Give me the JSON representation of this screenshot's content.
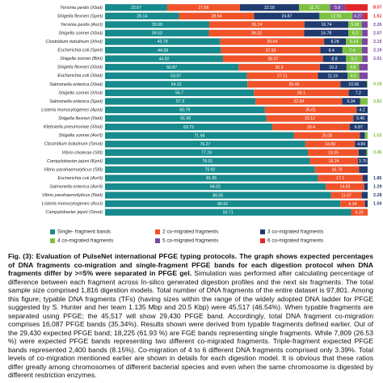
{
  "chart_data": {
    "type": "bar",
    "orientation": "horizontal",
    "stacked": true,
    "categories": [
      "Yersinia pestis (XbaI)",
      "Shigella flexneri (SpeI)",
      "Yersinia pestis (AscI)",
      "Shigella sonnei (XbaI)",
      "Clostridium botulinum (XhoI)",
      "Escherichia coli (SpeI)",
      "Shigella sonnei (BlnI)",
      "Shigella flexneri (XbaI)",
      "Escherichia coli (XbaI)",
      "Salmonella enterica (XbaI)",
      "Shigella sonnei (XhoI)",
      "Salmonella enterica (SpeI)",
      "Listeria monocytogenes (ApaI)",
      "Shigella flexneri (NotI)",
      "Klebsiella pneumoniae (XbaI)",
      "Shigella sonnei (AvrII)",
      "Clostridium botulinum (SmaI)",
      "Vibrio cholerae (SfiI)",
      "Campylobacter jejuni (KpnI)",
      "Vibrio parahaemolyticus (SfiI)",
      "Escherichia coli (AvrII)",
      "Salmonella enterica (AvrII)",
      "Vibrio parahaemolyticus (NotI)",
      "Listeria monocytogenes (AscI)",
      "Campylobacter jejuni (SmaI)"
    ],
    "series": [
      {
        "name": "Single- fragment bands",
        "color": "#168a8c",
        "values": [
          23.67,
          28.14,
          39.68,
          39.53,
          43.79,
          44.08,
          44.92,
          50.87,
          53.97,
          54.22,
          56.7,
          57.3,
          60.79,
          61.42,
          63.73,
          71.94,
          76.27,
          77.24,
          78.01,
          79.92,
          81.05,
          84.02,
          86.05,
          89.62,
          93.71
        ]
      },
      {
        "name": "2 co-migrated fragments",
        "color": "#f0532a",
        "values": [
          27.66,
          28.64,
          36.24,
          36.32,
          39.64,
          37.93,
          38.07,
          30.9,
          27.11,
          35.46,
          36.1,
          32.94,
          35.01,
          33.12,
          29.4,
          25.08,
          18.89,
          19.35,
          18.24,
          16.78,
          17.1,
          14.69,
          11.67,
          9.34,
          6.29
        ]
      },
      {
        "name": "3 co-migrated fragments",
        "color": "#1f3b6f",
        "values": [
          22.58,
          24.87,
          16.74,
          16.78,
          8.28,
          8.4,
          8.8,
          10.2,
          11.24,
          10.06,
          7.2,
          6.94,
          4.2,
          5.46,
          6.87,
          1.96,
          4.84,
          2.96,
          3.75,
          3.3,
          1.85,
          1.29,
          2.28,
          1.04,
          null
        ]
      },
      {
        "name": "4 co-migrated fragments",
        "color": "#7cc142",
        "values": [
          11.71,
          12.56,
          5.08,
          5.3,
          6.14,
          7.4,
          6.2,
          4.8,
          4.5,
          0.26,
          null,
          2.82,
          null,
          null,
          null,
          1.02,
          null,
          0.45,
          null,
          null,
          null,
          null,
          null,
          null,
          null
        ]
      },
      {
        "name": "5 co-migrated fragments",
        "color": "#7b4aa0",
        "values": [
          5.8,
          4.27,
          2.26,
          2.07,
          2.15,
          2.19,
          2.01,
          3.23,
          3.18,
          null,
          null,
          null,
          null,
          null,
          null,
          null,
          null,
          null,
          null,
          null,
          null,
          null,
          null,
          null,
          null
        ]
      },
      {
        "name": "6 co-migrated fragments",
        "color": "#e3262a",
        "values": [
          8.57,
          1.51,
          null,
          null,
          null,
          null,
          null,
          null,
          null,
          null,
          null,
          null,
          null,
          null,
          null,
          null,
          null,
          null,
          null,
          null,
          null,
          null,
          null,
          null,
          null
        ]
      }
    ],
    "xlim": [
      0,
      100
    ],
    "legend": "bottom"
  },
  "caption": {
    "title": "Fig. (3): Evaluation of PulseNet international PFGE typing protocols. The graph shows expected percentages of DNA fragments co-migration and single-fragment PFGE bands for each digestion protocol when DNA fragments differ by >=5% were separated in PFGE gel.",
    "text": "Simulation was performed after calculating percentage of difference between each fragment across In-silico generated digestion profiles and the next six fragments. The total sample size comprised 1,816 digestion models. Total number of DNA fragments of the entire dataset is 97,801. Among this figure; typable DNA fragments (TFs) (having sizes within the range of the widely adopted DNA ladder for PFGE suggested by S. Hunter and her team 1.135 Mbp and 20.5 Kbp) were 45,517 (46.54%). When typable fragments are separated using PFGE; the 45,517 will show 29,430 PFGE band. Accordingly, total DNA fragment co-migration comprises 16,087 PFGE bands (35.34%). Results shown were derived from typable fragments defined earlier. Out of the 29,430 expected PFGE band; 18,225 (61.93 %) are FGE bands representing single fragments. While 7,809 (26.53 %) were expected PFGE bands representing two different co-migrated fragments. Triple-fragment expected PFGE bands represented 2,400 bands (8.15%). Co-migration of 4 to 6 different DNA fragments comprised only 3.39%. Total levels of co-migration mentioned earlier are shown in details for each digestion model. It is obvious that these ratios differ greatly among chromosomes of different bacterial species and even when the same chromosome is digested by different restriction enzymes."
  }
}
